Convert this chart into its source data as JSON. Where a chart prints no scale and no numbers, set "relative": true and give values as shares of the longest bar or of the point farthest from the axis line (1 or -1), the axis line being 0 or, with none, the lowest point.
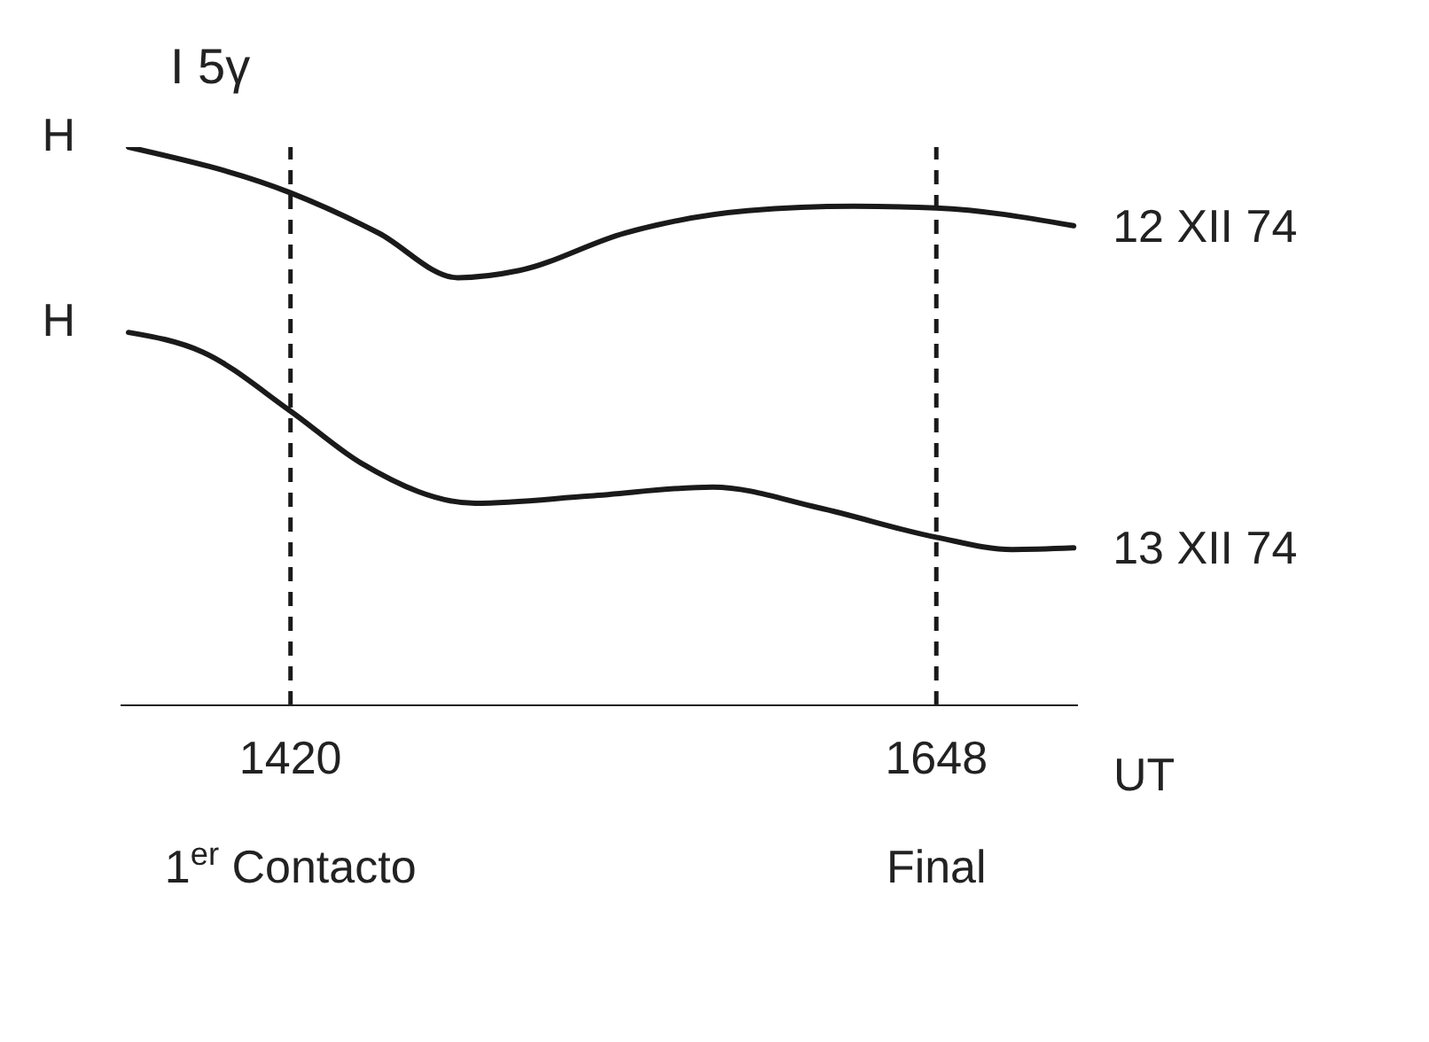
{
  "chart_data": {
    "type": "line",
    "relative": true,
    "marker": "none",
    "line_style": "solid",
    "grid": false,
    "xlabel": "UT",
    "annotations": [
      "I 5γ",
      "H",
      "H",
      "1$^{er}$ Contacto",
      "Final"
    ],
    "xlim": [
      1360,
      1698
    ],
    "xticks": [
      1420,
      1648
    ],
    "series": [
      {
        "name": "12 XII 74",
        "color": "#1a1a1a",
        "x": [
          1362.8,
          1420,
          1451.1,
          1479,
          1500.8,
          1538,
          1581.5,
          1618.8,
          1648,
          1696.5
        ],
        "values": [
          1.0,
          0.918,
          0.846,
          0.766,
          0.779,
          0.846,
          0.886,
          0.894,
          0.891,
          0.859
        ]
      },
      {
        "name": "13 XII 74",
        "color": "#1a1a1a",
        "x": [
          1362.8,
          1388.9,
          1420,
          1444.9,
          1485.2,
          1525.6,
          1569.1,
          1606.4,
          1648,
          1674.7,
          1696.5
        ],
        "values": [
          0.668,
          0.633,
          0.527,
          0.434,
          0.362,
          0.375,
          0.391,
          0.354,
          0.301,
          0.279,
          0.282
        ]
      }
    ],
    "ref_lines": [
      {
        "axis": "x",
        "value": 1420,
        "line_style": "dashed",
        "color": "#1a1a1a"
      },
      {
        "axis": "x",
        "value": 1648,
        "line_style": "dashed",
        "color": "#1a1a1a"
      }
    ]
  }
}
